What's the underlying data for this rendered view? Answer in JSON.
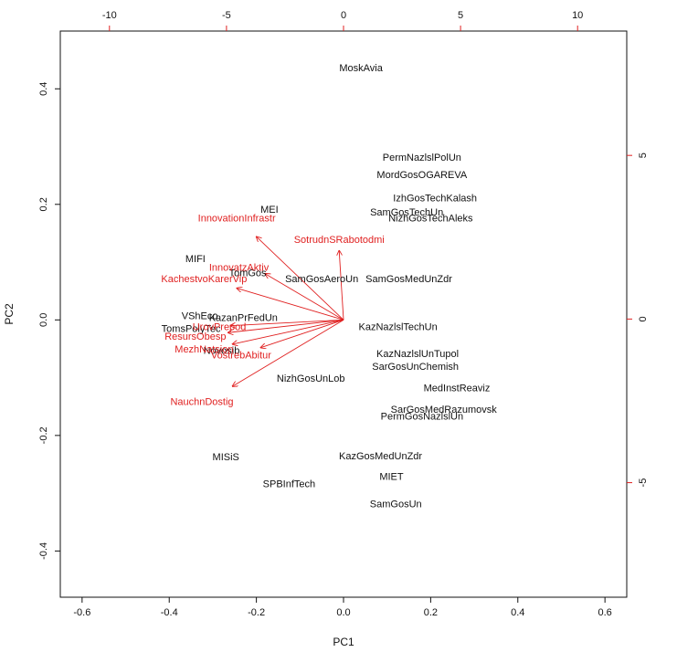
{
  "chart_data": {
    "type": "scatter",
    "subtype": "biplot",
    "xlabel": "PC1",
    "ylabel": "PC2",
    "xlim": [
      -0.65,
      0.65
    ],
    "ylim": [
      -0.48,
      0.5
    ],
    "xticks": [
      -0.6,
      -0.4,
      -0.2,
      0.0,
      0.2,
      0.4,
      0.6
    ],
    "yticks": [
      -0.4,
      -0.2,
      0.0,
      0.2,
      0.4
    ],
    "x2lim": [
      -12.1,
      12.1
    ],
    "y2lim": [
      -8.5,
      8.8
    ],
    "x2ticks": [
      -10,
      -5,
      0,
      5,
      10
    ],
    "y2ticks": [
      -5,
      0,
      5
    ],
    "grid": false,
    "point_color": "#111111",
    "arrow_color": "#e02020",
    "observations": [
      {
        "label": "MoskAvia",
        "x": 0.04,
        "y": 0.435
      },
      {
        "label": "PermNazlslPolUn",
        "x": 0.18,
        "y": 0.28
      },
      {
        "label": "MordGosOGAREVA",
        "x": 0.18,
        "y": 0.25
      },
      {
        "label": "IzhGosTechKalash",
        "x": 0.21,
        "y": 0.21
      },
      {
        "label": "SamGosTechUn",
        "x": 0.145,
        "y": 0.185
      },
      {
        "label": "NizhGosTechAleks",
        "x": 0.2,
        "y": 0.175
      },
      {
        "label": "MEI",
        "x": -0.17,
        "y": 0.19
      },
      {
        "label": "SamGosMedUnZdr",
        "x": 0.15,
        "y": 0.07
      },
      {
        "label": "SamGosAeroUn",
        "x": -0.05,
        "y": 0.07
      },
      {
        "label": "MIFI",
        "x": -0.34,
        "y": 0.105
      },
      {
        "label": "TomGos",
        "x": -0.22,
        "y": 0.08
      },
      {
        "label": "KazNazlslTechUn",
        "x": 0.125,
        "y": -0.013
      },
      {
        "label": "KazanPrFedUn",
        "x": -0.23,
        "y": 0.003
      },
      {
        "label": "VShEco",
        "x": -0.33,
        "y": 0.006
      },
      {
        "label": "TomsPolyTec",
        "x": -0.35,
        "y": -0.016
      },
      {
        "label": "Novosib",
        "x": -0.28,
        "y": -0.054
      },
      {
        "label": "KazNazlslUnTupol",
        "x": 0.17,
        "y": -0.06
      },
      {
        "label": "SarGosUnChemish",
        "x": 0.165,
        "y": -0.082
      },
      {
        "label": "NizhGosUnLob",
        "x": -0.075,
        "y": -0.102
      },
      {
        "label": "MedInstReaviz",
        "x": 0.26,
        "y": -0.119
      },
      {
        "label": "SarGosMedRazumovsk",
        "x": 0.23,
        "y": -0.156
      },
      {
        "label": "PermGosNazlslUn",
        "x": 0.18,
        "y": -0.168
      },
      {
        "label": "MISiS",
        "x": -0.27,
        "y": -0.238
      },
      {
        "label": "KazGosMedUnZdr",
        "x": 0.085,
        "y": -0.237
      },
      {
        "label": "MIET",
        "x": 0.11,
        "y": -0.272
      },
      {
        "label": "SPBInfTech",
        "x": -0.125,
        "y": -0.285
      },
      {
        "label": "SamGosUn",
        "x": 0.12,
        "y": -0.32
      }
    ],
    "variables": [
      {
        "label": "InnovationInfrastr",
        "x": -0.2,
        "y": 0.144,
        "label_x": -0.245,
        "label_y": 0.175
      },
      {
        "label": "SotrudnSRabotodmi",
        "x": -0.01,
        "y": 0.12,
        "label_x": -0.01,
        "label_y": 0.138
      },
      {
        "label": "InnovatzAktiv",
        "x": -0.18,
        "y": 0.08,
        "label_x": -0.24,
        "label_y": 0.09
      },
      {
        "label": "KachestvoKarerVip",
        "x": -0.245,
        "y": 0.055,
        "label_x": -0.32,
        "label_y": 0.07
      },
      {
        "label": "UrovPrepod",
        "x": -0.26,
        "y": -0.01,
        "label_x": -0.285,
        "label_y": -0.013
      },
      {
        "label": "ResursObesp",
        "x": -0.265,
        "y": -0.022,
        "label_x": -0.34,
        "label_y": -0.03
      },
      {
        "label": "MezhNatsion",
        "x": -0.255,
        "y": -0.042,
        "label_x": -0.32,
        "label_y": -0.052
      },
      {
        "label": "VostrebAbitur",
        "x": -0.19,
        "y": -0.048,
        "label_x": -0.235,
        "label_y": -0.062
      },
      {
        "label": "NauchnDostig",
        "x": -0.255,
        "y": -0.115,
        "label_x": -0.325,
        "label_y": -0.143
      }
    ]
  }
}
